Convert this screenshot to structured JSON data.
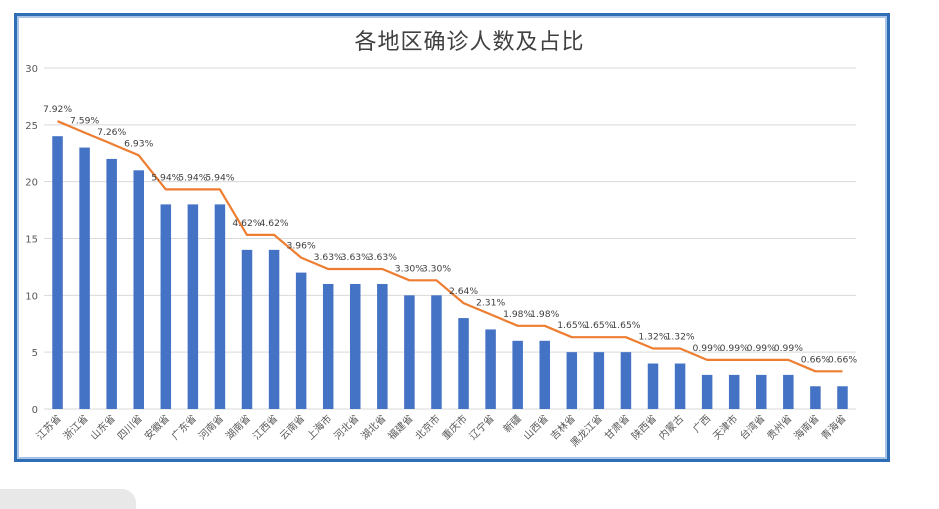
{
  "chart_data": {
    "type": "bar",
    "title": "各地区确诊人数及占比",
    "categories": [
      "江苏省",
      "浙江省",
      "山东省",
      "四川省",
      "安徽省",
      "广东省",
      "河南省",
      "湖南省",
      "江西省",
      "云南省",
      "上海市",
      "河北省",
      "湖北省",
      "福建省",
      "北京市",
      "重庆市",
      "辽宁省",
      "新疆",
      "山西省",
      "吉林省",
      "黑龙江省",
      "甘肃省",
      "陕西省",
      "内蒙古",
      "广西",
      "天津市",
      "台湾省",
      "贵州省",
      "海南省",
      "青海省"
    ],
    "values": [
      24,
      23,
      22,
      21,
      18,
      18,
      18,
      14,
      14,
      12,
      11,
      11,
      11,
      10,
      10,
      8,
      7,
      6,
      6,
      5,
      5,
      5,
      4,
      4,
      3,
      3,
      3,
      3,
      2,
      2
    ],
    "share_labels": [
      "7.92%",
      "7.59%",
      "7.26%",
      "6.93%",
      "5.94%",
      "5.94%",
      "5.94%",
      "4.62%",
      "4.62%",
      "3.96%",
      "3.63%",
      "3.63%",
      "3.63%",
      "3.30%",
      "3.30%",
      "2.64%",
      "2.31%",
      "1.98%",
      "1.98%",
      "1.65%",
      "1.65%",
      "1.65%",
      "1.32%",
      "1.32%",
      "0.99%",
      "0.99%",
      "0.99%",
      "0.99%",
      "0.66%",
      "0.66%"
    ],
    "ylim": [
      0,
      30
    ],
    "yticks": [
      0,
      5,
      10,
      15,
      20,
      25,
      30
    ],
    "grid": true,
    "bar_color": "#4472c4",
    "line_color": "#ed7d31",
    "gridline_color": "#d9d9d9",
    "text_color": "#595959"
  }
}
